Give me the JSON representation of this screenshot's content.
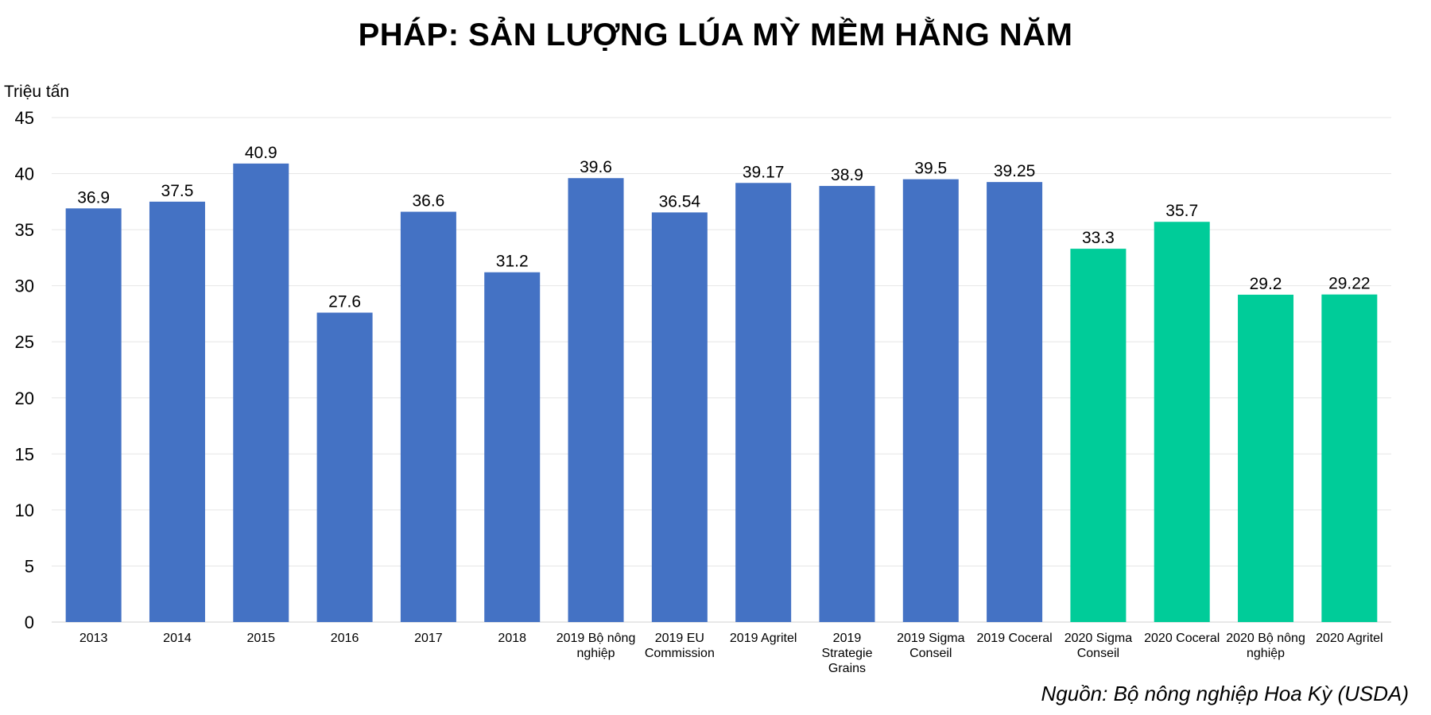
{
  "chart_data": {
    "type": "bar",
    "title": "PHÁP: SẢN LƯỢNG LÚA MỲ MỀM HẰNG NĂM",
    "ylabel": "Triệu tấn",
    "xlabel": "",
    "ylim": [
      0,
      45
    ],
    "yticks": [
      0,
      5,
      10,
      15,
      20,
      25,
      30,
      35,
      40,
      45
    ],
    "grid": true,
    "legend": "none",
    "categories": [
      "2013",
      "2014",
      "2015",
      "2016",
      "2017",
      "2018",
      "2019 Bộ nông nghiệp",
      "2019 EU Commission",
      "2019 Agritel",
      "2019 Strategie Grains",
      "2019 Sigma Conseil",
      "2019 Coceral",
      "2020 Sigma Conseil",
      "2020 Coceral",
      "2020 Bộ nông nghiệp",
      "2020 Agritel"
    ],
    "category_lines": [
      [
        "2013"
      ],
      [
        "2014"
      ],
      [
        "2015"
      ],
      [
        "2016"
      ],
      [
        "2017"
      ],
      [
        "2018"
      ],
      [
        "2019 Bộ nông",
        "nghiệp"
      ],
      [
        "2019 EU",
        "Commission"
      ],
      [
        "2019 Agritel"
      ],
      [
        "2019",
        "Strategie",
        "Grains"
      ],
      [
        "2019 Sigma",
        "Conseil"
      ],
      [
        "2019 Coceral"
      ],
      [
        "2020 Sigma",
        "Conseil"
      ],
      [
        "2020 Coceral"
      ],
      [
        "2020 Bộ nông",
        "nghiệp"
      ],
      [
        "2020 Agritel"
      ]
    ],
    "values": [
      36.9,
      37.5,
      40.9,
      27.6,
      36.6,
      31.2,
      39.6,
      36.54,
      39.17,
      38.9,
      39.5,
      39.25,
      33.3,
      35.7,
      29.2,
      29.22
    ],
    "value_labels": [
      "36.9",
      "37.5",
      "40.9",
      "27.6",
      "36.6",
      "31.2",
      "39.6",
      "36.54",
      "39.17",
      "38.9",
      "39.5",
      "39.25",
      "33.3",
      "35.7",
      "29.2",
      "29.22"
    ],
    "bar_colors": [
      "#4472C4",
      "#4472C4",
      "#4472C4",
      "#4472C4",
      "#4472C4",
      "#4472C4",
      "#4472C4",
      "#4472C4",
      "#4472C4",
      "#4472C4",
      "#4472C4",
      "#4472C4",
      "#00CC99",
      "#00CC99",
      "#00CC99",
      "#00CC99"
    ]
  },
  "source": "Nguồn: Bộ nông nghiệp Hoa Kỳ (USDA)"
}
